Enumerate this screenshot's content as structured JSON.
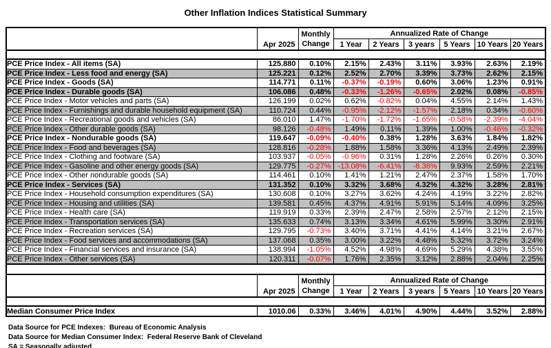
{
  "title": "Other Inflation Indices Statistical Summary",
  "colors": {
    "row_alt_bg": "#c0c0c0",
    "negative": "#ff0000",
    "border": "#000000"
  },
  "header": {
    "period": "Apr 2025",
    "monthly_line1": "Monthly",
    "monthly_line2": "Change",
    "arc_title": "Annualized Rate of Change",
    "year_cols": [
      "1 Year",
      "2 Years",
      "3 years",
      "5 Years",
      "10 Years",
      "20 Years"
    ]
  },
  "rows": [
    {
      "label": "PCE Price Index - All items (SA)",
      "indent": 0,
      "bold": true,
      "shaded": false,
      "values": [
        "125.880",
        "0.10%",
        "2.15%",
        "2.43%",
        "3.11%",
        "3.93%",
        "2.63%",
        "2.19%"
      ]
    },
    {
      "label": "PCE Price Index - Less food and energy (SA)",
      "indent": 0,
      "bold": true,
      "shaded": true,
      "values": [
        "125.221",
        "0.12%",
        "2.52%",
        "2.70%",
        "3.39%",
        "3.73%",
        "2.62%",
        "2.15%"
      ]
    },
    {
      "label": "PCE Price Index - Goods (SA)",
      "indent": 1,
      "bold": true,
      "shaded": false,
      "values": [
        "114.771",
        "0.11%",
        "-0.37%",
        "-0.19%",
        "0.60%",
        "3.06%",
        "1.23%",
        "0.91%"
      ]
    },
    {
      "label": "PCE Price Index - Durable goods (SA)",
      "indent": 2,
      "bold": true,
      "shaded": true,
      "values": [
        "106.086",
        "0.48%",
        "-0.33%",
        "-1.26%",
        "-0.65%",
        "2.02%",
        "0.08%",
        "-0.85%"
      ]
    },
    {
      "label": "PCE Price Index - Motor vehicles and parts (SA)",
      "indent": 3,
      "bold": false,
      "shaded": false,
      "values": [
        "126.199",
        "0.02%",
        "0.62%",
        "-0.82%",
        "0.04%",
        "4.55%",
        "2.14%",
        "1.43%"
      ]
    },
    {
      "label": "PCE Price Index - Furnishings and durable household equipment (SA)",
      "indent": 3,
      "bold": false,
      "shaded": true,
      "values": [
        "110.724",
        "0.44%",
        "-0.95%",
        "-2.12%",
        "-1.57%",
        "2.18%",
        "0.34%",
        "-0.60%"
      ]
    },
    {
      "label": "PCE Price Index - Recreational goods and vehicles (SA)",
      "indent": 3,
      "bold": false,
      "shaded": false,
      "values": [
        "86.010",
        "1.47%",
        "-1.70%",
        "-1.72%",
        "-1.65%",
        "-0.58%",
        "-2.39%",
        "-4.04%"
      ]
    },
    {
      "label": "PCE Price Index - Other durable goods (SA)",
      "indent": 3,
      "bold": false,
      "shaded": true,
      "values": [
        "98.126",
        "-0.48%",
        "1.49%",
        "0.11%",
        "1.39%",
        "1.00%",
        "-0.46%",
        "-0.32%"
      ]
    },
    {
      "label": "PCE Price Index - Nondurable goods (SA)",
      "indent": 2,
      "bold": true,
      "shaded": false,
      "values": [
        "119.647",
        "-0.09%",
        "-0.40%",
        "0.38%",
        "1.28%",
        "3.63%",
        "1.84%",
        "1.82%"
      ]
    },
    {
      "label": "PCE Price Index - Food and beverages (SA)",
      "indent": 3,
      "bold": false,
      "shaded": true,
      "values": [
        "128.816",
        "-0.28%",
        "1.88%",
        "1.58%",
        "3.36%",
        "4.13%",
        "2.49%",
        "2.39%"
      ]
    },
    {
      "label": "PCE Price Index - Clothing and footware (SA)",
      "indent": 3,
      "bold": false,
      "shaded": false,
      "values": [
        "103.937",
        "-0.05%",
        "-0.96%",
        "0.31%",
        "1.28%",
        "2.26%",
        "0.26%",
        "0.30%"
      ]
    },
    {
      "label": "PCE Price Index - Gasoline and other energy goods (SA)",
      "indent": 3,
      "bold": false,
      "shaded": true,
      "values": [
        "129.775",
        "-0.27%",
        "-13.08%",
        "-6.41%",
        "-8.36%",
        "9.93%",
        "2.59%",
        "2.21%"
      ]
    },
    {
      "label": "PCE Price Index - Other nondurable goods (SA)",
      "indent": 3,
      "bold": false,
      "shaded": false,
      "values": [
        "114.461",
        "0.10%",
        "1.41%",
        "1.21%",
        "2.47%",
        "2.37%",
        "1.58%",
        "1.70%"
      ]
    },
    {
      "label": "PCE Price Index - Services (SA)",
      "indent": 1,
      "bold": true,
      "shaded": true,
      "values": [
        "131.352",
        "0.10%",
        "3.32%",
        "3.68%",
        "4.32%",
        "4.32%",
        "3.28%",
        "2.81%"
      ]
    },
    {
      "label": "PCE Price Index - Household consumption expenditures (SA)",
      "indent": 3,
      "bold": false,
      "shaded": false,
      "values": [
        "130.608",
        "0.10%",
        "3.27%",
        "3.62%",
        "4.24%",
        "4.19%",
        "3.22%",
        "2.82%"
      ]
    },
    {
      "label": "PCE Price Index - Housing and utilities (SA)",
      "indent": 3,
      "bold": false,
      "shaded": true,
      "values": [
        "139.581",
        "0.45%",
        "4.37%",
        "4.91%",
        "5.91%",
        "5.14%",
        "4.09%",
        "3.25%"
      ]
    },
    {
      "label": "PCE Price Index - Health care (SA)",
      "indent": 3,
      "bold": false,
      "shaded": false,
      "values": [
        "119.919",
        "0.33%",
        "2.39%",
        "2.47%",
        "2.58%",
        "2.57%",
        "2.12%",
        "2.15%"
      ]
    },
    {
      "label": "PCE Price Index - Transportation services (SA)",
      "indent": 3,
      "bold": false,
      "shaded": true,
      "values": [
        "135.633",
        "0.74%",
        "3.13%",
        "3.34%",
        "4.61%",
        "5.99%",
        "3.30%",
        "2.91%"
      ]
    },
    {
      "label": "PCE Price Index - Recreation services (SA)",
      "indent": 3,
      "bold": false,
      "shaded": false,
      "values": [
        "129.795",
        "-0.73%",
        "3.40%",
        "3.71%",
        "4.41%",
        "4.14%",
        "3.21%",
        "2.67%"
      ]
    },
    {
      "label": "PCE Price Index - Food services and accommodations (SA)",
      "indent": 3,
      "bold": false,
      "shaded": true,
      "values": [
        "137.068",
        "0.35%",
        "3.00%",
        "3.22%",
        "4.48%",
        "5.32%",
        "3.72%",
        "3.24%"
      ]
    },
    {
      "label": "PCE Price Index - Financial services and insurance (SA)",
      "indent": 3,
      "bold": false,
      "shaded": false,
      "values": [
        "138.994",
        "-1.05%",
        "4.52%",
        "4.98%",
        "4.69%",
        "5.29%",
        "4.38%",
        "3.55%"
      ]
    },
    {
      "label": "PCE Price Index - Other services (SA)",
      "indent": 3,
      "bold": false,
      "shaded": true,
      "values": [
        "120.311",
        "-0.07%",
        "1.76%",
        "2.35%",
        "3.12%",
        "2.88%",
        "2.04%",
        "2.25%"
      ]
    }
  ],
  "median_row": {
    "label": "Median Consumer Price Index",
    "values": [
      "1010.06",
      "0.33%",
      "3.46%",
      "4.01%",
      "4.90%",
      "4.44%",
      "3.52%",
      "2.88%"
    ]
  },
  "footnotes": [
    "Data Source for PCE Indexes:  Bureau of Economic Analysis",
    "Data Source for Median Consumer Index:  Federal Reserve Bank of Cleveland",
    "SA = Seasonally adjusted"
  ]
}
